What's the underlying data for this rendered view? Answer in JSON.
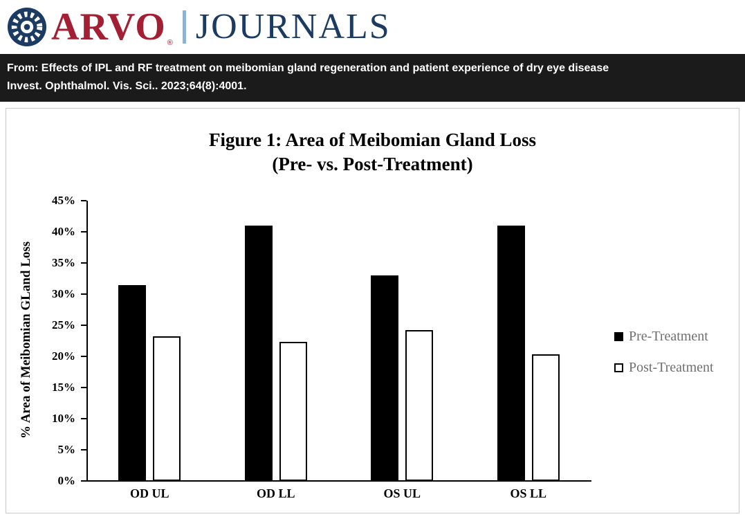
{
  "header": {
    "brand": "ARVO",
    "reg": "®",
    "journals": "JOURNALS"
  },
  "citation": {
    "line1": "From: Effects of IPL and RF treatment on meibomian gland regeneration and patient experience of dry eye disease",
    "line2": "Invest. Ophthalmol. Vis. Sci.. 2023;64(8):4001."
  },
  "colors": {
    "brand_red": "#A31F34",
    "brand_navy": "#1C3B63",
    "divider_blue": "#8FB3D1",
    "citation_bg": "#1b1b1b",
    "legend_text": "#6f6f6f",
    "bar_fill": "#000000",
    "bar_outline": "#000000"
  },
  "chart_data": {
    "type": "bar",
    "title_line1": "Figure 1: Area of Meibomian Gland Loss",
    "title_line2": "(Pre- vs. Post-Treatment)",
    "ylabel": "% Area of Meibomian GLand Loss",
    "xlabel": "",
    "categories": [
      "OD UL",
      "OD LL",
      "OS UL",
      "OS LL"
    ],
    "series": [
      {
        "name": "Pre-Treatment",
        "style": "filled-black",
        "values": [
          31.5,
          41.0,
          33.0,
          41.0
        ]
      },
      {
        "name": "Post-Treatment",
        "style": "white-outlined",
        "values": [
          23.2,
          22.3,
          24.2,
          20.3
        ]
      }
    ],
    "ylim": [
      0,
      45
    ],
    "ytick_step": 5,
    "ytick_labels": [
      "0%",
      "5%",
      "10%",
      "15%",
      "20%",
      "25%",
      "30%",
      "35%",
      "40%",
      "45%"
    ],
    "grid": false,
    "legend_position": "right"
  }
}
